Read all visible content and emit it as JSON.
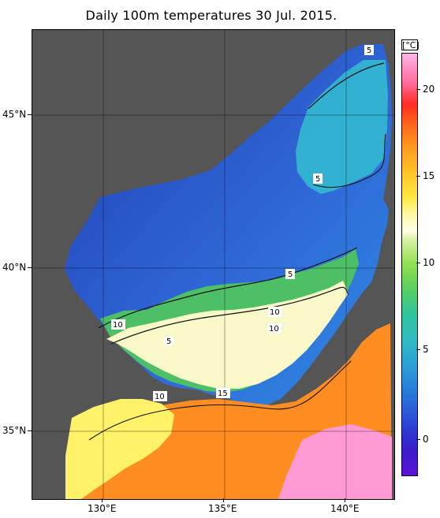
{
  "title": "Daily 100m temperatures 30 Jul. 2015.",
  "map": {
    "x_ticks": [
      "130°E",
      "135°E",
      "140°E"
    ],
    "y_ticks": [
      "45°N",
      "40°N",
      "35°N"
    ],
    "grid": true
  },
  "colorbar": {
    "unit": "[°C]",
    "labels": [
      "20",
      "15",
      "10",
      "5",
      "0"
    ],
    "range_c": [
      -1.5,
      22.5
    ]
  },
  "contour_labels": [
    {
      "text": "5"
    },
    {
      "text": "5"
    },
    {
      "text": "5"
    },
    {
      "text": "10"
    },
    {
      "text": "10"
    },
    {
      "text": "10"
    },
    {
      "text": "5"
    },
    {
      "text": "10"
    },
    {
      "text": "15"
    }
  ],
  "colors": {
    "land": "#555555",
    "cold_deep": "#1f3fb3",
    "cold": "#2f66d6",
    "cool": "#35b8d0",
    "mid": "#54c865",
    "warm": "#f6f7c9",
    "hot": "#ff8a1f",
    "hottest": "#ff9ade"
  }
}
